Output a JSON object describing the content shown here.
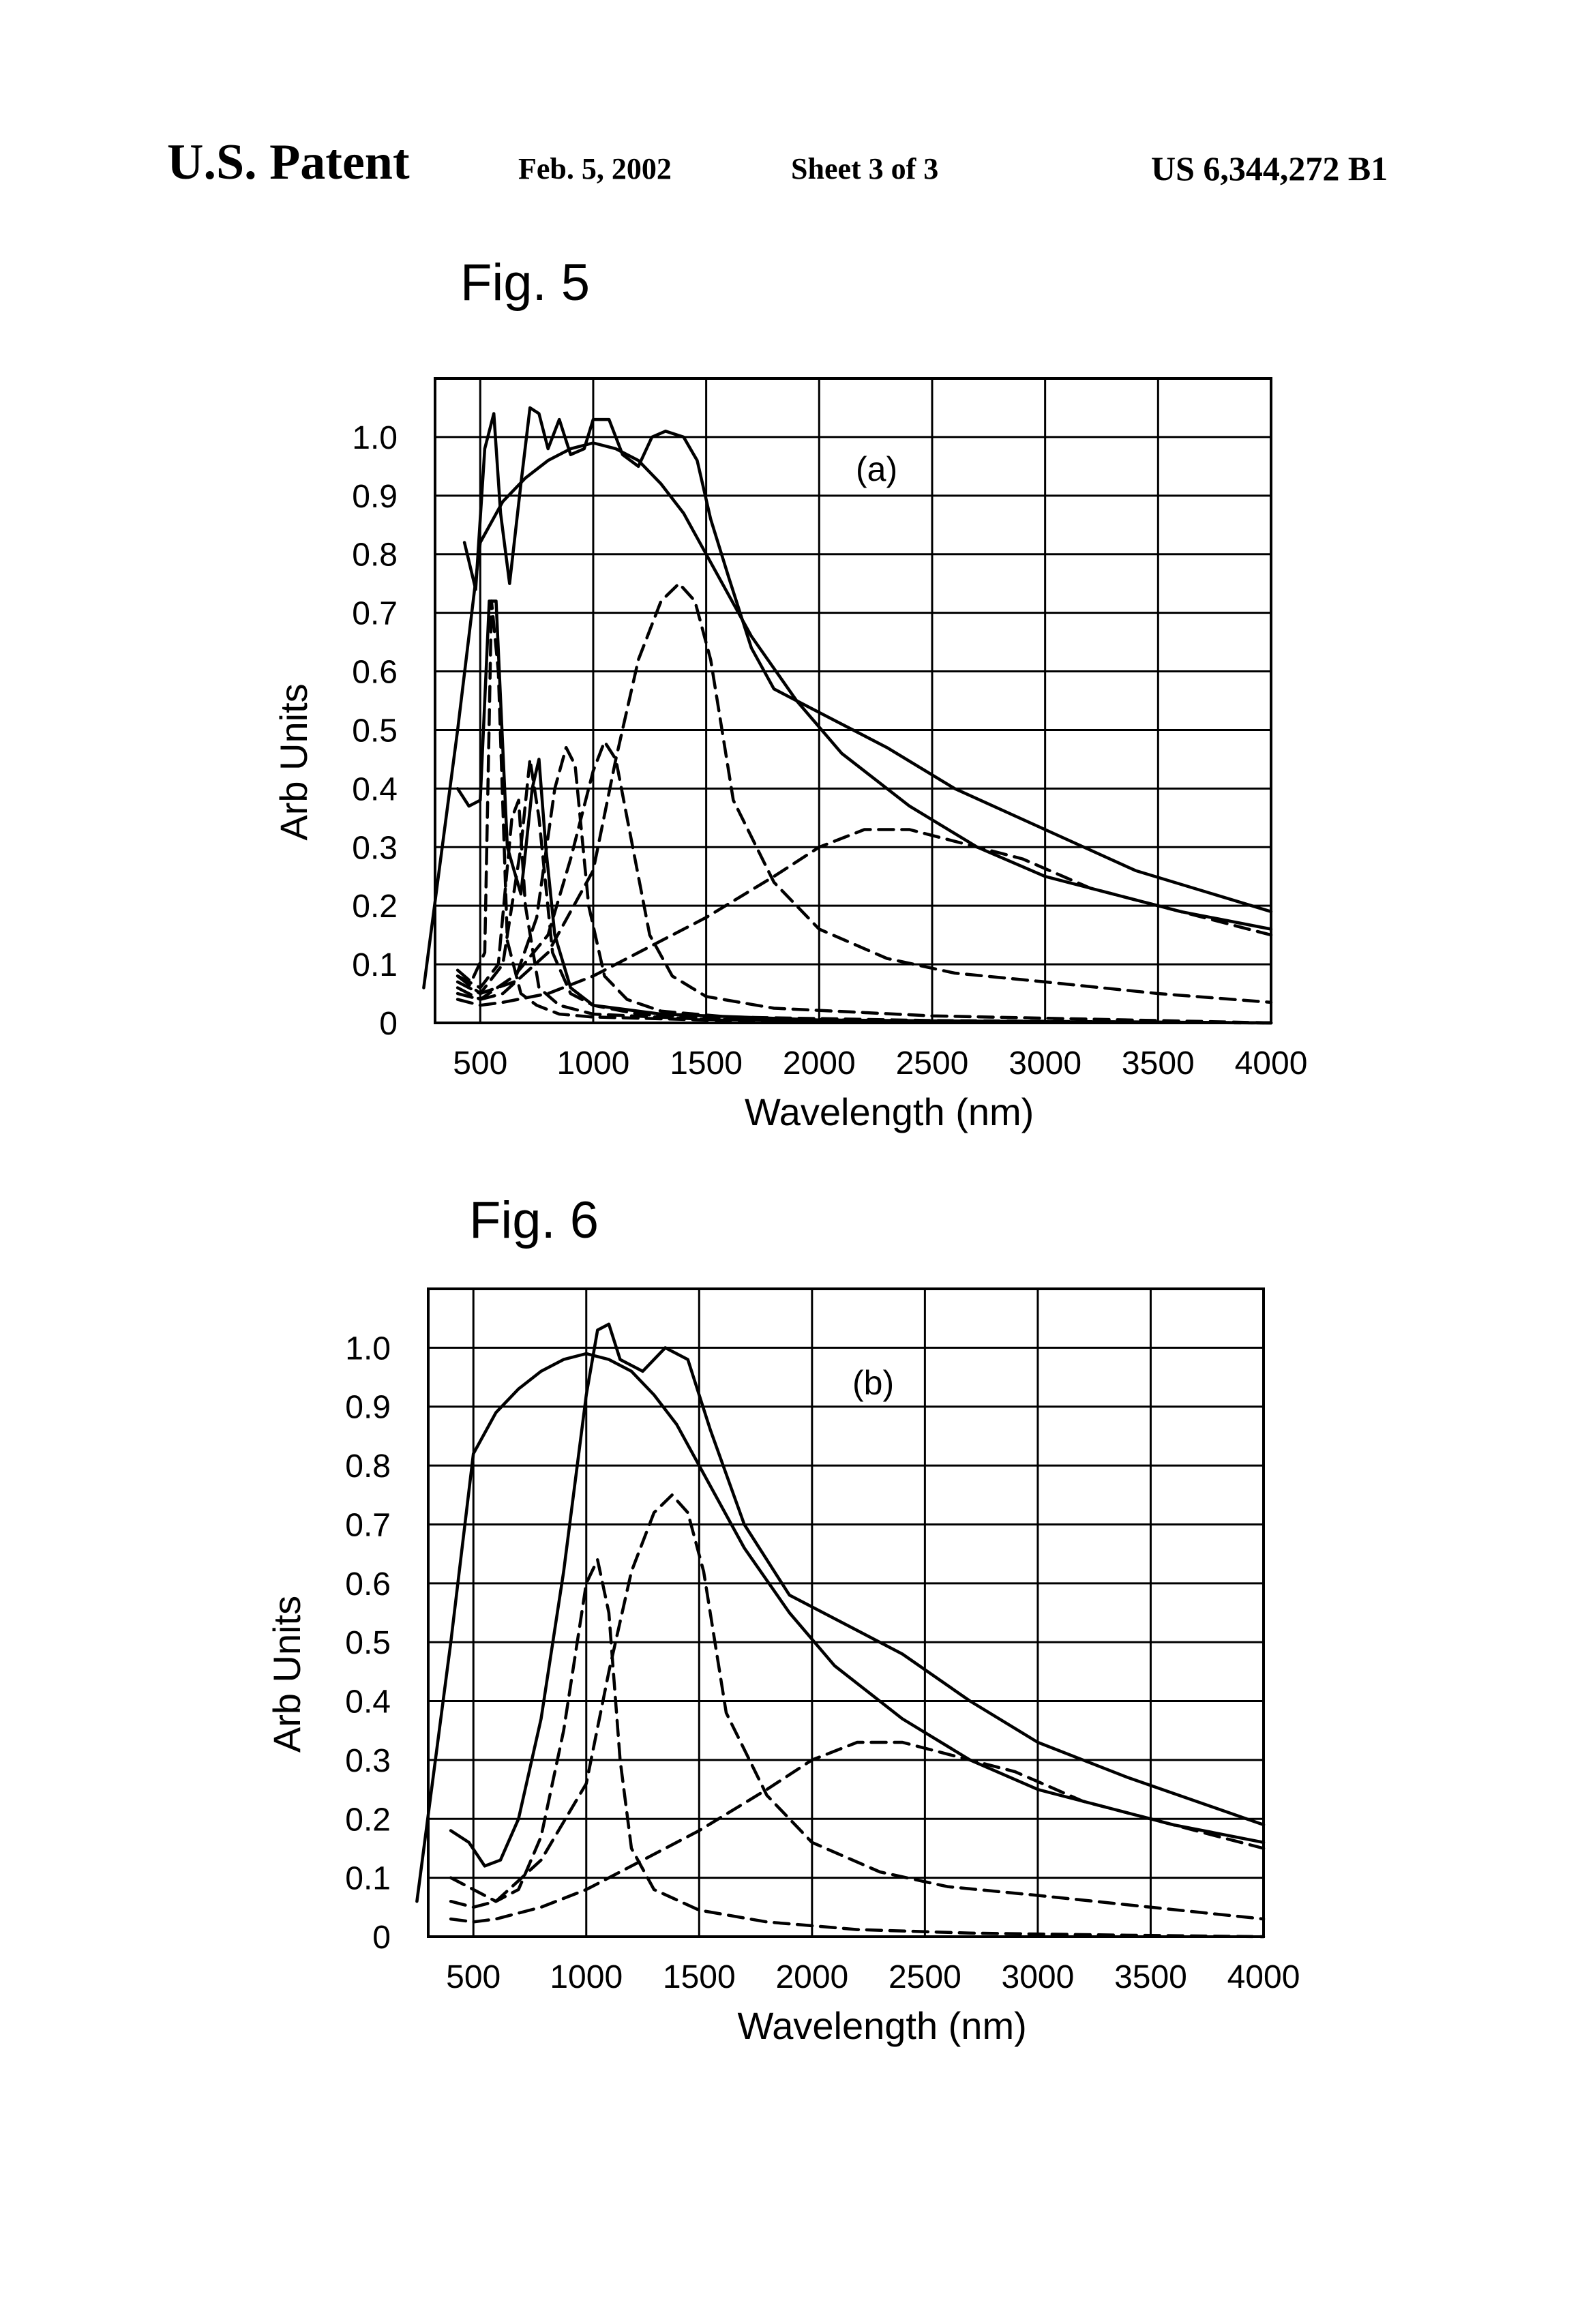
{
  "header": {
    "title": "U.S. Patent",
    "date": "Feb. 5, 2002",
    "sheet": "Sheet 3 of 3",
    "patent_number": "US 6,344,272 B1"
  },
  "chart_data": [
    {
      "figure": "Fig. 5",
      "panel_label": "(a)",
      "type": "line",
      "xlabel": "Wavelength (nm)",
      "ylabel": "Arb Units",
      "xticks": [
        "500",
        "1000",
        "1500",
        "2000",
        "2500",
        "3000",
        "3500",
        "4000"
      ],
      "yticks": [
        "0",
        "0.1",
        "0.2",
        "0.3",
        "0.4",
        "0.5",
        "0.6",
        "0.7",
        "0.8",
        "0.9",
        "1.0"
      ],
      "xlim": [
        300,
        4000
      ],
      "ylim": [
        0,
        1.1
      ],
      "grid": true,
      "series": [
        {
          "style": "solid",
          "x": [
            250,
            400,
            500,
            600,
            700,
            800,
            900,
            1000,
            1100,
            1200,
            1300,
            1400,
            1500,
            1700,
            1900,
            2100,
            2400,
            2700,
            3000,
            3300,
            3600,
            4000
          ],
          "y": [
            0.06,
            0.5,
            0.82,
            0.89,
            0.93,
            0.96,
            0.98,
            0.99,
            0.98,
            0.96,
            0.92,
            0.87,
            0.8,
            0.66,
            0.55,
            0.46,
            0.37,
            0.3,
            0.25,
            0.22,
            0.19,
            0.16
          ]
        },
        {
          "style": "solid",
          "x": [
            430,
            480,
            520,
            560,
            590,
            630,
            680,
            720,
            760,
            800,
            850,
            900,
            960,
            1000,
            1070,
            1130,
            1200,
            1260,
            1320,
            1400,
            1460,
            1520,
            1600,
            1700,
            1800,
            2000,
            2300,
            2600,
            3000,
            3400,
            4000
          ],
          "y": [
            0.82,
            0.74,
            0.98,
            1.04,
            0.87,
            0.75,
            0.92,
            1.05,
            1.04,
            0.98,
            1.03,
            0.97,
            0.98,
            1.03,
            1.03,
            0.97,
            0.95,
            1.0,
            1.01,
            1.0,
            0.96,
            0.86,
            0.76,
            0.64,
            0.57,
            0.53,
            0.47,
            0.4,
            0.33,
            0.26,
            0.19
          ]
        },
        {
          "style": "solid",
          "x": [
            400,
            450,
            500,
            540,
            570,
            620,
            680,
            730,
            760,
            790,
            830,
            900,
            1000,
            1300,
            2000,
            3000,
            4000
          ],
          "y": [
            0.4,
            0.37,
            0.38,
            0.72,
            0.72,
            0.3,
            0.22,
            0.4,
            0.45,
            0.3,
            0.15,
            0.06,
            0.03,
            0.015,
            0.005,
            0.002,
            0.0
          ]
        },
        {
          "style": "dashed",
          "x": [
            400,
            460,
            520,
            550,
            580,
            620,
            680,
            750,
            850,
            1000,
            1500,
            2500,
            4000
          ],
          "y": [
            0.09,
            0.07,
            0.12,
            0.72,
            0.6,
            0.14,
            0.05,
            0.03,
            0.015,
            0.01,
            0.005,
            0.002,
            0.0
          ]
        },
        {
          "style": "dashed",
          "x": [
            400,
            500,
            580,
            640,
            670,
            700,
            760,
            850,
            1000,
            1500,
            2500,
            4000
          ],
          "y": [
            0.08,
            0.06,
            0.1,
            0.35,
            0.38,
            0.2,
            0.06,
            0.03,
            0.015,
            0.006,
            0.002,
            0.0
          ]
        },
        {
          "style": "dashed",
          "x": [
            400,
            500,
            600,
            680,
            720,
            760,
            820,
            900,
            1000,
            1200,
            1500,
            2500,
            4000
          ],
          "y": [
            0.08,
            0.05,
            0.1,
            0.3,
            0.45,
            0.35,
            0.12,
            0.05,
            0.03,
            0.015,
            0.008,
            0.003,
            0.0
          ]
        },
        {
          "style": "dashed",
          "x": [
            400,
            500,
            650,
            750,
            830,
            880,
            920,
            980,
            1050,
            1150,
            1300,
            1600,
            2500,
            4000
          ],
          "y": [
            0.07,
            0.05,
            0.07,
            0.18,
            0.4,
            0.47,
            0.44,
            0.2,
            0.08,
            0.04,
            0.02,
            0.01,
            0.004,
            0.0
          ]
        },
        {
          "style": "dashed",
          "x": [
            400,
            500,
            650,
            800,
            900,
            1000,
            1050,
            1100,
            1150,
            1250,
            1350,
            1500,
            1800,
            2500,
            3500,
            4000
          ],
          "y": [
            0.06,
            0.04,
            0.08,
            0.15,
            0.28,
            0.43,
            0.48,
            0.45,
            0.35,
            0.15,
            0.08,
            0.045,
            0.025,
            0.012,
            0.004,
            0.0
          ]
        },
        {
          "style": "dashed",
          "x": [
            400,
            500,
            600,
            800,
            1000,
            1100,
            1200,
            1300,
            1380,
            1450,
            1520,
            1620,
            1800,
            2000,
            2300,
            2600,
            3000,
            3500,
            4000
          ],
          "y": [
            0.05,
            0.04,
            0.05,
            0.12,
            0.26,
            0.45,
            0.62,
            0.72,
            0.75,
            0.72,
            0.62,
            0.38,
            0.24,
            0.16,
            0.11,
            0.085,
            0.07,
            0.05,
            0.035
          ]
        },
        {
          "style": "dashed",
          "x": [
            400,
            500,
            600,
            800,
            1000,
            1200,
            1500,
            1800,
            2000,
            2200,
            2400,
            2600,
            2900,
            3200,
            3500,
            4000
          ],
          "y": [
            0.04,
            0.03,
            0.035,
            0.05,
            0.08,
            0.12,
            0.18,
            0.25,
            0.3,
            0.33,
            0.33,
            0.31,
            0.28,
            0.23,
            0.2,
            0.15
          ]
        }
      ]
    },
    {
      "figure": "Fig. 6",
      "panel_label": "(b)",
      "type": "line",
      "xlabel": "Wavelength (nm)",
      "ylabel": "Arb Units",
      "xticks": [
        "500",
        "1000",
        "1500",
        "2000",
        "2500",
        "3000",
        "3500",
        "4000"
      ],
      "yticks": [
        "0",
        "0.1",
        "0.2",
        "0.3",
        "0.4",
        "0.5",
        "0.6",
        "0.7",
        "0.8",
        "0.9",
        "1.0"
      ],
      "xlim": [
        300,
        4000
      ],
      "ylim": [
        0,
        1.1
      ],
      "grid": true,
      "series": [
        {
          "style": "solid",
          "x": [
            250,
            400,
            500,
            600,
            700,
            800,
            900,
            1000,
            1100,
            1200,
            1300,
            1400,
            1500,
            1700,
            1900,
            2100,
            2400,
            2700,
            3000,
            3300,
            3600,
            4000
          ],
          "y": [
            0.06,
            0.5,
            0.82,
            0.89,
            0.93,
            0.96,
            0.98,
            0.99,
            0.98,
            0.96,
            0.92,
            0.87,
            0.8,
            0.66,
            0.55,
            0.46,
            0.37,
            0.3,
            0.25,
            0.22,
            0.19,
            0.16
          ]
        },
        {
          "style": "solid",
          "x": [
            400,
            480,
            550,
            620,
            700,
            800,
            900,
            1000,
            1050,
            1100,
            1150,
            1250,
            1350,
            1450,
            1550,
            1700,
            1900,
            2100,
            2400,
            2700,
            3000,
            3400,
            4000
          ],
          "y": [
            0.18,
            0.16,
            0.12,
            0.13,
            0.2,
            0.37,
            0.62,
            0.92,
            1.03,
            1.04,
            0.98,
            0.96,
            1.0,
            0.98,
            0.86,
            0.7,
            0.58,
            0.54,
            0.48,
            0.4,
            0.33,
            0.27,
            0.19
          ]
        },
        {
          "style": "dashed",
          "x": [
            400,
            500,
            600,
            700,
            800,
            900,
            1000,
            1050,
            1100,
            1150,
            1200,
            1300,
            1500,
            1800,
            2200,
            2700,
            3500,
            4000
          ],
          "y": [
            0.1,
            0.08,
            0.06,
            0.08,
            0.17,
            0.35,
            0.6,
            0.64,
            0.55,
            0.3,
            0.15,
            0.08,
            0.045,
            0.025,
            0.012,
            0.006,
            0.002,
            0.0
          ]
        },
        {
          "style": "dashed",
          "x": [
            400,
            500,
            600,
            800,
            1000,
            1100,
            1200,
            1300,
            1380,
            1450,
            1520,
            1620,
            1800,
            2000,
            2300,
            2600,
            3000,
            3500,
            4000
          ],
          "y": [
            0.06,
            0.05,
            0.06,
            0.13,
            0.26,
            0.45,
            0.62,
            0.72,
            0.75,
            0.72,
            0.62,
            0.38,
            0.24,
            0.16,
            0.11,
            0.085,
            0.07,
            0.05,
            0.03
          ]
        },
        {
          "style": "dashed",
          "x": [
            400,
            500,
            600,
            800,
            1000,
            1200,
            1500,
            1800,
            2000,
            2200,
            2400,
            2600,
            2900,
            3200,
            3500,
            4000
          ],
          "y": [
            0.03,
            0.025,
            0.03,
            0.05,
            0.08,
            0.12,
            0.18,
            0.25,
            0.3,
            0.33,
            0.33,
            0.31,
            0.28,
            0.23,
            0.2,
            0.15
          ]
        }
      ]
    }
  ]
}
